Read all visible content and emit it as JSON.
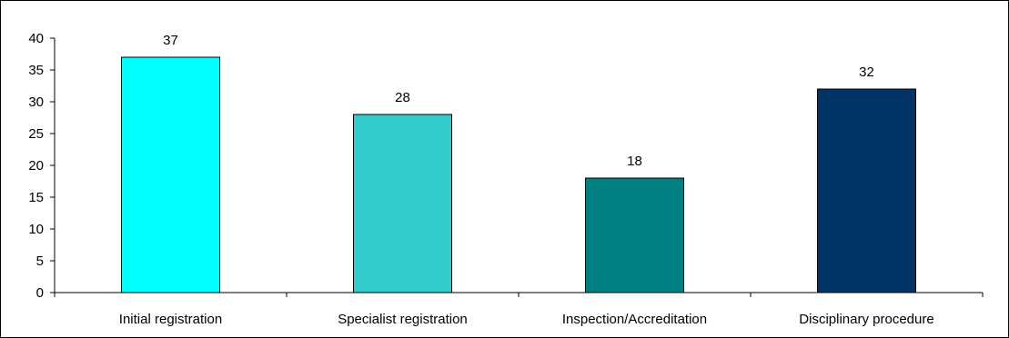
{
  "chart_data": {
    "type": "bar",
    "title": "",
    "xlabel": "",
    "ylabel": "",
    "categories": [
      "Initial registration",
      "Specialist registration",
      "Inspection/Accreditation",
      "Disciplinary procedure"
    ],
    "values": [
      37,
      28,
      18,
      32
    ],
    "data_labels": [
      "37",
      "28",
      "18",
      "32"
    ],
    "colors": [
      "#00FFFF",
      "#33CCCC",
      "#008080",
      "#003366"
    ],
    "ylim": [
      0,
      40
    ],
    "yticks": [
      0,
      5,
      10,
      15,
      20,
      25,
      30,
      35,
      40
    ],
    "ytick_labels": [
      "0",
      "5",
      "10",
      "15",
      "20",
      "25",
      "30",
      "35",
      "40"
    ],
    "grid": false,
    "legend": "none"
  }
}
